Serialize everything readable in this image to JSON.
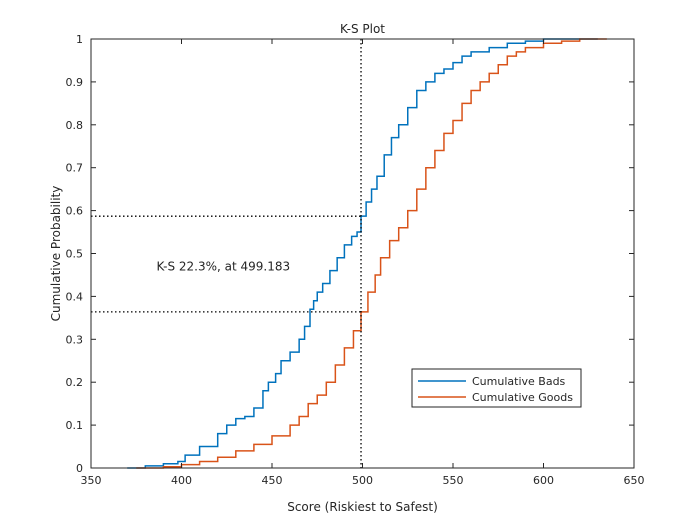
{
  "chart_data": {
    "type": "line",
    "title": "K-S Plot",
    "xlabel": "Score (Riskiest to Safest)",
    "ylabel": "Cumulative Probability",
    "xlim": [
      350,
      650
    ],
    "ylim": [
      0,
      1
    ],
    "xticks": [
      350,
      400,
      450,
      500,
      550,
      600,
      650
    ],
    "yticks": [
      0,
      0.1,
      0.2,
      0.3,
      0.4,
      0.5,
      0.6,
      0.7,
      0.8,
      0.9,
      1
    ],
    "grid": false,
    "legend_position": "bottom-right",
    "annotation": {
      "text": "K-S 22.3%, at 499.183",
      "x": 400,
      "y": 0.47
    },
    "ks": {
      "x": 499.183,
      "y_bads": 0.587,
      "y_goods": 0.364
    },
    "series": [
      {
        "name": "Cumulative Bads",
        "color": "#0072bd",
        "x": [
          370,
          380,
          390,
          398,
          402,
          410,
          420,
          425,
          430,
          435,
          440,
          445,
          448,
          452,
          455,
          460,
          465,
          468,
          471,
          473,
          475,
          478,
          482,
          486,
          490,
          494,
          497,
          499.183,
          502,
          505,
          508,
          512,
          516,
          520,
          525,
          530,
          535,
          540,
          545,
          550,
          555,
          560,
          570,
          580,
          590,
          600,
          610,
          620,
          630
        ],
        "values": [
          0,
          0.005,
          0.01,
          0.015,
          0.03,
          0.05,
          0.08,
          0.1,
          0.115,
          0.12,
          0.14,
          0.18,
          0.2,
          0.22,
          0.25,
          0.27,
          0.3,
          0.33,
          0.37,
          0.39,
          0.41,
          0.43,
          0.46,
          0.49,
          0.52,
          0.54,
          0.55,
          0.587,
          0.62,
          0.65,
          0.68,
          0.73,
          0.77,
          0.8,
          0.84,
          0.88,
          0.9,
          0.92,
          0.93,
          0.945,
          0.96,
          0.97,
          0.98,
          0.99,
          0.995,
          1,
          1,
          1,
          1
        ]
      },
      {
        "name": "Cumulative Goods",
        "color": "#d95319",
        "x": [
          375,
          390,
          400,
          410,
          420,
          430,
          440,
          450,
          460,
          465,
          470,
          475,
          480,
          485,
          490,
          495,
          499.183,
          503,
          507,
          510,
          515,
          520,
          525,
          530,
          535,
          540,
          545,
          550,
          555,
          560,
          565,
          570,
          575,
          580,
          585,
          590,
          600,
          610,
          620,
          635
        ],
        "values": [
          0,
          0.003,
          0.008,
          0.015,
          0.025,
          0.04,
          0.055,
          0.075,
          0.1,
          0.12,
          0.15,
          0.17,
          0.2,
          0.24,
          0.28,
          0.32,
          0.364,
          0.41,
          0.45,
          0.49,
          0.53,
          0.56,
          0.6,
          0.65,
          0.7,
          0.74,
          0.78,
          0.81,
          0.85,
          0.88,
          0.9,
          0.92,
          0.94,
          0.96,
          0.97,
          0.98,
          0.99,
          0.995,
          1,
          1
        ]
      }
    ]
  }
}
